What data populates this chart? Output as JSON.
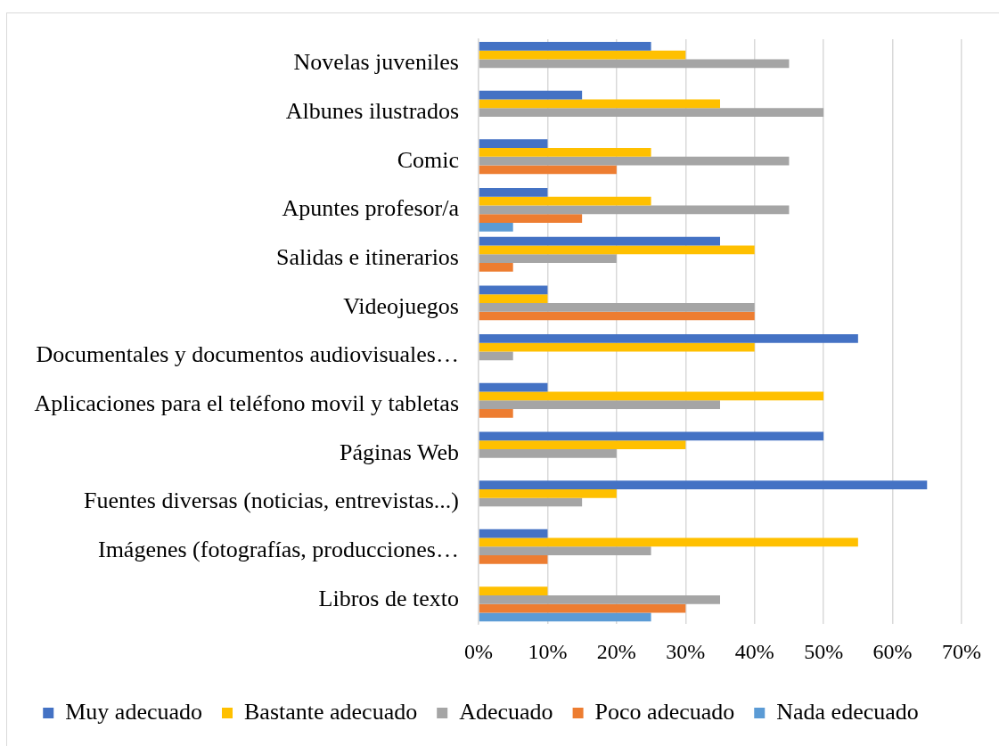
{
  "chart_data": {
    "type": "bar",
    "orientation": "horizontal",
    "categories": [
      "Novelas juveniles",
      "Albunes ilustrados",
      "Comic",
      "Apuntes profesor/a",
      "Salidas e itinerarios",
      "Videojuegos",
      "Documentales y documentos audiovisuales…",
      "Aplicaciones para el teléfono movil y tabletas",
      "Páginas Web",
      "Fuentes diversas (noticias, entrevistas...)",
      "Imágenes (fotografías, producciones…",
      "Libros de texto"
    ],
    "series": [
      {
        "name": "Muy adecuado",
        "color": "#4472c4",
        "values": [
          25,
          15,
          10,
          10,
          35,
          10,
          55,
          10,
          50,
          65,
          10,
          0
        ]
      },
      {
        "name": "Bastante adecuado",
        "color": "#ffc000",
        "values": [
          30,
          35,
          25,
          25,
          40,
          10,
          40,
          50,
          30,
          20,
          55,
          10
        ]
      },
      {
        "name": "Adecuado",
        "color": "#a5a5a5",
        "values": [
          45,
          50,
          45,
          45,
          20,
          40,
          5,
          35,
          20,
          15,
          25,
          35
        ]
      },
      {
        "name": "Poco adecuado",
        "color": "#ed7d31",
        "values": [
          0,
          0,
          20,
          15,
          5,
          40,
          0,
          5,
          0,
          0,
          10,
          30
        ]
      },
      {
        "name": "Nada edecuado",
        "color": "#5b9bd5",
        "values": [
          0,
          0,
          0,
          5,
          0,
          0,
          0,
          0,
          0,
          0,
          0,
          25
        ]
      }
    ],
    "xlim": [
      0,
      70
    ],
    "xticks": [
      {
        "value": 0,
        "label": "0%"
      },
      {
        "value": 10,
        "label": "10%"
      },
      {
        "value": 20,
        "label": "20%"
      },
      {
        "value": 30,
        "label": "30%"
      },
      {
        "value": 40,
        "label": "40%"
      },
      {
        "value": 50,
        "label": "50%"
      },
      {
        "value": 60,
        "label": "60%"
      },
      {
        "value": 70,
        "label": "70%"
      }
    ],
    "grid": "x",
    "legend": "bottom"
  }
}
